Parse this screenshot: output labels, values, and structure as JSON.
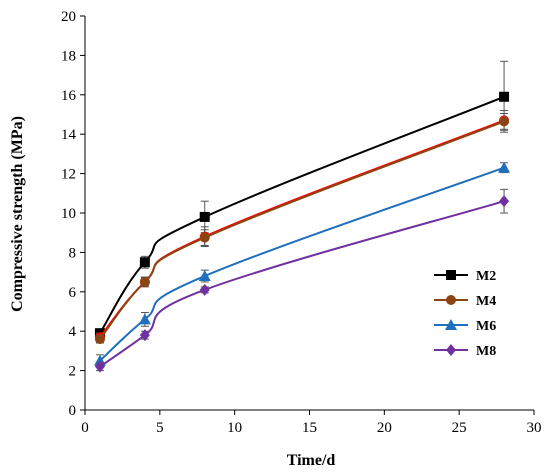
{
  "chart_data": {
    "type": "line",
    "xlabel": "Time/d",
    "ylabel": "Compressive strength (MPa)",
    "xlim": [
      0,
      30
    ],
    "ylim": [
      0,
      20
    ],
    "xticks": [
      0,
      5,
      10,
      15,
      20,
      25,
      30
    ],
    "yticks": [
      0,
      2,
      4,
      6,
      8,
      10,
      12,
      14,
      16,
      18,
      20
    ],
    "grid": false,
    "legend_position": "right",
    "x": [
      1,
      4,
      8,
      28
    ],
    "series": [
      {
        "name": "M2",
        "color": "#000000",
        "marker": "square",
        "values": [
          3.9,
          7.5,
          9.8,
          15.9
        ],
        "errors": [
          0.2,
          0.3,
          0.8,
          1.8
        ]
      },
      {
        "name": "",
        "color": "#ff0000",
        "marker": "circle",
        "values": [
          3.7,
          6.5,
          8.8,
          14.7
        ],
        "errors": [
          0.2,
          0.25,
          0.5,
          0.5
        ]
      },
      {
        "name": "M4",
        "color": "#8b4513",
        "marker": "circle",
        "values": [
          3.6,
          6.5,
          8.75,
          14.65
        ],
        "errors": [
          0.2,
          0.2,
          0.4,
          0.4
        ]
      },
      {
        "name": "M6",
        "color": "#1f6fbf",
        "marker": "triangle",
        "values": [
          2.5,
          4.6,
          6.8,
          12.3
        ],
        "errors": [
          0.3,
          0.35,
          0.3,
          0.25
        ]
      },
      {
        "name": "M8",
        "color": "#7030a0",
        "marker": "diamond",
        "values": [
          2.2,
          3.8,
          6.1,
          10.6
        ],
        "errors": [
          0.2,
          0.2,
          0.15,
          0.6
        ]
      }
    ]
  }
}
